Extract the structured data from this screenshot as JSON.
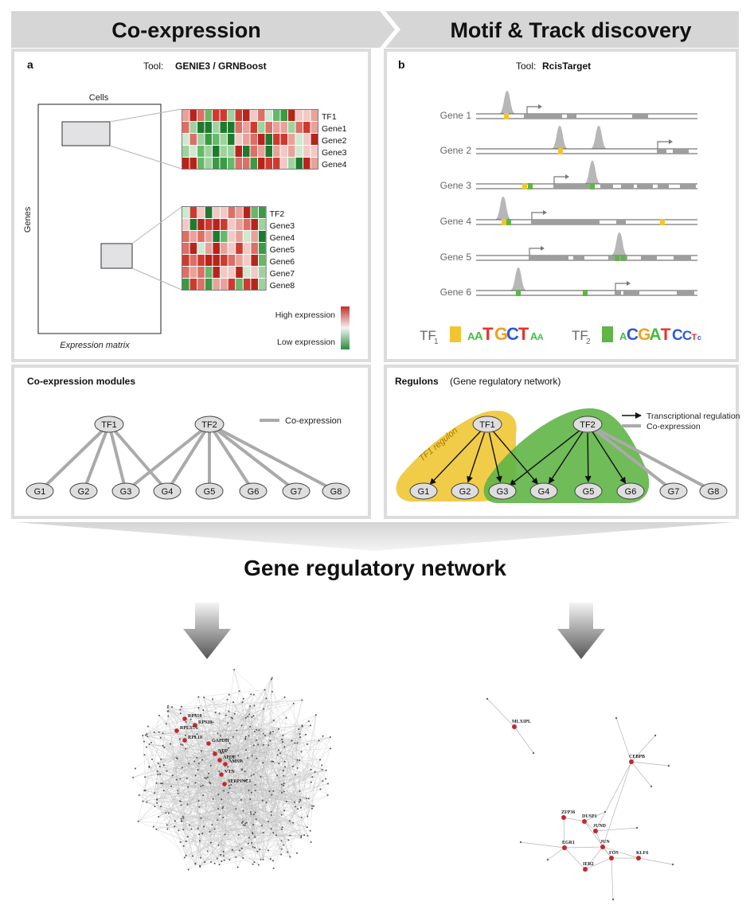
{
  "banner": {
    "left_title": "Co-expression",
    "right_title": "Motif & Track discovery"
  },
  "panel_a": {
    "letter": "a",
    "tool_prefix": "Tool:",
    "tool_name": "GENIE3 / GRNBoost",
    "cells_label": "Cells",
    "genes_label": "Genes",
    "matrix_label": "Expression matrix",
    "heatmap1_rows": [
      "TF1",
      "Gene1",
      "Gene2",
      "Gene3",
      "Gene4"
    ],
    "heatmap2_rows": [
      "TF2",
      "Gene3",
      "Gene4",
      "Gene5",
      "Gene6",
      "Gene7",
      "Gene8"
    ],
    "legend_high": "High expression",
    "legend_low": "Low expression",
    "high_color": "#c0302a",
    "low_color": "#2a8a3e"
  },
  "panel_b": {
    "letter": "b",
    "tool_prefix": "Tool:",
    "tool_name": "RcisTarget",
    "genes": [
      "Gene 1",
      "Gene 2",
      "Gene 3",
      "Gene 4",
      "Gene 5",
      "Gene 6"
    ],
    "tf1_label": "TF",
    "tf1_sub": "1",
    "tf2_label": "TF",
    "tf2_sub": "2",
    "tf1_color": "#f2c530",
    "tf2_color": "#5fb546",
    "motif1": [
      [
        "A",
        "#3fbf3f"
      ],
      [
        "A",
        "#3fbf3f"
      ],
      [
        "T",
        "#e8312a"
      ],
      [
        "G",
        "#f2a020"
      ],
      [
        "C",
        "#2a5bd7"
      ],
      [
        "T",
        "#e8312a"
      ],
      [
        "A",
        "#3fbf3f"
      ],
      [
        "A",
        "#3fbf3f"
      ]
    ],
    "motif2": [
      [
        "A",
        "#3fbf3f"
      ],
      [
        "C",
        "#2a5bd7"
      ],
      [
        "G",
        "#f2a020"
      ],
      [
        "A",
        "#3fbf3f"
      ],
      [
        "T",
        "#e8312a"
      ],
      [
        "C",
        "#2a5bd7"
      ],
      [
        "C",
        "#2a5bd7"
      ],
      [
        "T",
        "#e8312a"
      ],
      [
        "c",
        "#2a5bd7"
      ]
    ]
  },
  "modules": {
    "title": "Co-expression modules",
    "legend": "Co-expression",
    "tfs": [
      "TF1",
      "TF2"
    ],
    "genes": [
      "G1",
      "G2",
      "G3",
      "G4",
      "G5",
      "G6",
      "G7",
      "G8"
    ]
  },
  "regulons": {
    "title": "Regulons",
    "subtitle": "(Gene regulatory network)",
    "legend_reg": "Transcriptional regulation",
    "legend_coexp": "Co-expression",
    "tf1_regulon_label": "TF1 regulon",
    "tfs": [
      "TF1",
      "TF2"
    ],
    "genes": [
      "G1",
      "G2",
      "G3",
      "G4",
      "G5",
      "G6",
      "G7",
      "G8"
    ]
  },
  "grn_title": "Gene regulatory network",
  "network_left": {
    "labels": [
      "RPS18",
      "RPS20",
      "RPL37A",
      "RPL10",
      "GAPDH",
      "NDP",
      "APOE",
      "AMSP",
      "VTN",
      "SERPINC1"
    ]
  },
  "network_right": {
    "labels": [
      "MLXIPL",
      "CEBPB",
      "ZFP36",
      "DUSP1",
      "JUND",
      "JUN",
      "EGR1",
      "FOS",
      "KLF6",
      "IER2"
    ]
  }
}
